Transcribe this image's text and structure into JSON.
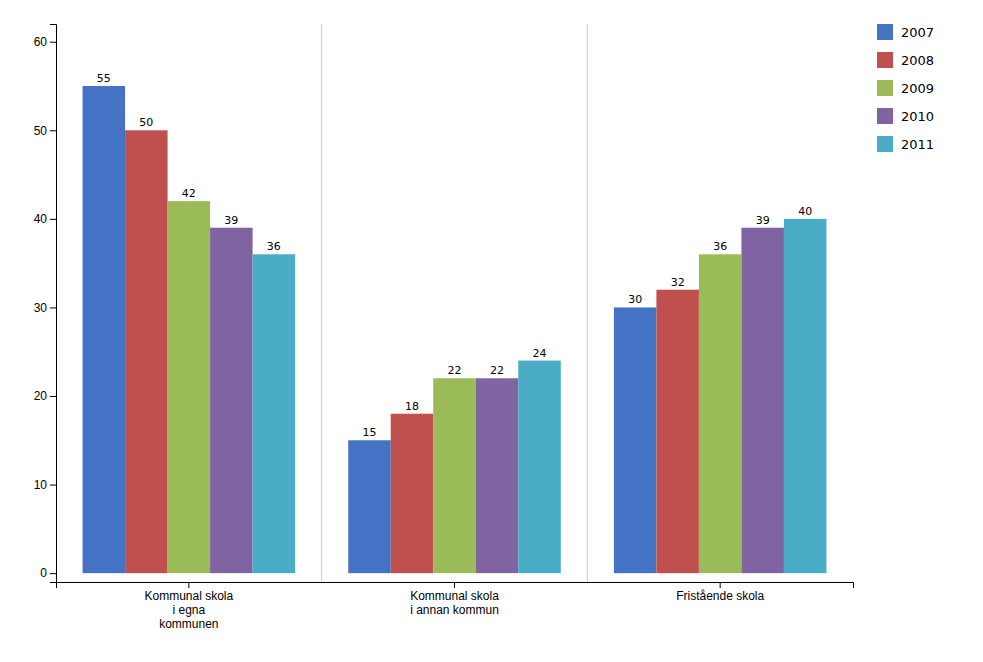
{
  "chart_data": {
    "type": "bar",
    "categories": [
      "Kommunal skola\ni egna\nkommunen",
      "Kommunal skola\ni annan kommun",
      "Fristående skola"
    ],
    "series": [
      {
        "name": "2007",
        "color": "#4472C4",
        "values": [
          55,
          15,
          30
        ]
      },
      {
        "name": "2008",
        "color": "#C0504D",
        "values": [
          50,
          18,
          32
        ]
      },
      {
        "name": "2009",
        "color": "#9BBB59",
        "values": [
          42,
          22,
          36
        ]
      },
      {
        "name": "2010",
        "color": "#8064A2",
        "values": [
          39,
          22,
          39
        ]
      },
      {
        "name": "2011",
        "color": "#4BACC6",
        "values": [
          36,
          24,
          40
        ]
      }
    ],
    "ylim": [
      -1,
      62
    ],
    "yticks": [
      0,
      10,
      20,
      30,
      40,
      50,
      60
    ],
    "grid": false,
    "legend": "right",
    "data_labels": true
  }
}
